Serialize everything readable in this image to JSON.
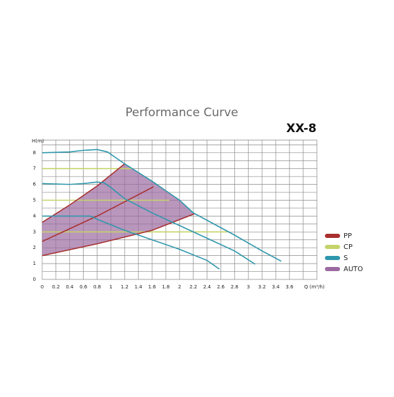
{
  "chart_data": {
    "type": "line",
    "title": "Performance Curve",
    "model": "XX-8",
    "ylabel": "H(m)",
    "xlabel": "Q (m³/h)",
    "xlim": [
      0,
      4
    ],
    "ylim": [
      0,
      8.8
    ],
    "xticks": [
      0,
      0.2,
      0.4,
      0.6,
      0.8,
      1,
      1.2,
      1.4,
      1.6,
      1.8,
      2,
      2.2,
      2.4,
      2.6,
      2.8,
      3,
      3.2,
      3.4,
      3.6
    ],
    "yticks": [
      0,
      1,
      2,
      3,
      4,
      5,
      6,
      7,
      8
    ],
    "xgrid": [
      0,
      0.2,
      0.4,
      0.6,
      0.8,
      1,
      1.2,
      1.4,
      1.6,
      1.8,
      2,
      2.2,
      2.4,
      2.6,
      2.8,
      3,
      3.2,
      3.4,
      3.6,
      3.8,
      4
    ],
    "ygrid": [
      0,
      0.5,
      1,
      1.5,
      2,
      2.5,
      3,
      3.5,
      4,
      4.5,
      5,
      5.5,
      6,
      6.5,
      7,
      7.5,
      8,
      8.5,
      8.8
    ],
    "series": [
      {
        "name": "AUTO",
        "color": "#9b6aa0",
        "fill": true,
        "lines": [
          {
            "x": [
              0,
              0.4,
              0.8,
              1.2,
              1.6,
              2.0,
              2.22,
              1.6,
              0.8,
              0
            ],
            "values": [
              3.6,
              4.7,
              5.9,
              7.3,
              6.2,
              5.0,
              4.15,
              3.1,
              2.25,
              1.5
            ]
          }
        ]
      },
      {
        "name": "CP",
        "color": "#c5d36a",
        "lines": [
          {
            "x": [
              0,
              1.3
            ],
            "values": [
              7,
              7
            ]
          },
          {
            "x": [
              0,
              1.85
            ],
            "values": [
              5,
              5
            ]
          },
          {
            "x": [
              0,
              2.7
            ],
            "values": [
              3,
              3
            ]
          }
        ]
      },
      {
        "name": "PP",
        "color": "#a8302f",
        "lines": [
          {
            "x": [
              0,
              0.4,
              0.8,
              1.2
            ],
            "values": [
              3.6,
              4.7,
              5.9,
              7.3
            ]
          },
          {
            "x": [
              0,
              0.4,
              0.8,
              1.2,
              1.62
            ],
            "values": [
              2.4,
              3.2,
              4.0,
              4.9,
              5.85
            ]
          },
          {
            "x": [
              0,
              0.8,
              1.6,
              2.22
            ],
            "values": [
              1.5,
              2.25,
              3.1,
              4.15
            ]
          }
        ]
      },
      {
        "name": "S",
        "color": "#2e97ac",
        "lines": [
          {
            "x": [
              0,
              0.4,
              0.6,
              0.8,
              0.95,
              1.1,
              1.2,
              1.6,
              2.0,
              2.2,
              2.8,
              3.2,
              3.48
            ],
            "values": [
              8,
              8.05,
              8.15,
              8.2,
              8.05,
              7.6,
              7.3,
              6.2,
              5.0,
              4.2,
              2.8,
              1.8,
              1.15
            ]
          },
          {
            "x": [
              0,
              0.4,
              0.6,
              0.8,
              0.9,
              1.0,
              1.2,
              1.6,
              2.0,
              2.4,
              2.8,
              3.1
            ],
            "values": [
              6.05,
              6.0,
              6.05,
              6.15,
              6.1,
              5.8,
              5.1,
              4.2,
              3.4,
              2.6,
              1.8,
              0.96
            ]
          },
          {
            "x": [
              0,
              0.4,
              0.7,
              0.8,
              1.2,
              1.6,
              2.0,
              2.4,
              2.58
            ],
            "values": [
              4,
              4,
              4,
              3.8,
              3.1,
              2.5,
              1.9,
              1.2,
              0.65
            ]
          }
        ]
      }
    ],
    "legend": [
      "PP",
      "CP",
      "S",
      "AUTO"
    ]
  }
}
